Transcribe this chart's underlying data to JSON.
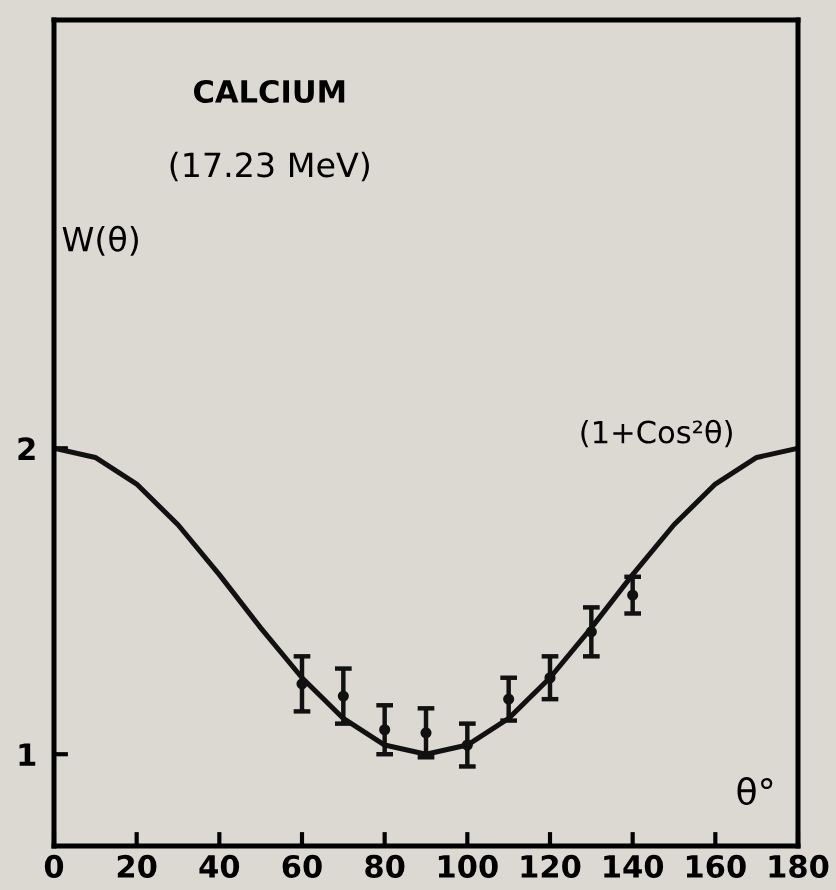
{
  "chart_data": {
    "type": "scatter",
    "title": "CALCIUM",
    "subtitle": "(17.23 MeV)",
    "xlabel": "θ°",
    "ylabel": "W(θ)",
    "annotations": [
      "(1+Cos²θ)"
    ],
    "series": [
      {
        "type": "line",
        "color": "#111111",
        "marker": "none",
        "line_style": "solid",
        "x": [
          0,
          10,
          20,
          30,
          40,
          50,
          60,
          70,
          80,
          90,
          100,
          110,
          120,
          130,
          140,
          150,
          160,
          170,
          180
        ],
        "values": [
          2.0,
          1.97,
          1.883,
          1.75,
          1.587,
          1.413,
          1.25,
          1.117,
          1.03,
          1.0,
          1.03,
          1.117,
          1.25,
          1.413,
          1.587,
          1.75,
          1.883,
          1.97,
          2.0
        ]
      },
      {
        "color": "#111111",
        "marker": "circle",
        "x": [
          60,
          70,
          80,
          90,
          100,
          110,
          120,
          130,
          140
        ],
        "values": [
          1.23,
          1.19,
          1.08,
          1.07,
          1.03,
          1.18,
          1.25,
          1.4,
          1.52
        ],
        "errors": [
          0.09,
          0.09,
          0.08,
          0.08,
          0.07,
          0.07,
          0.07,
          0.08,
          0.06
        ]
      }
    ],
    "xlim": [
      0,
      180
    ],
    "xticks": [
      0,
      20,
      40,
      60,
      80,
      100,
      120,
      140,
      160,
      180
    ],
    "ylim": [
      0.7,
      3.4
    ],
    "yticks": [
      1,
      2
    ],
    "grid": false,
    "legend": false
  }
}
